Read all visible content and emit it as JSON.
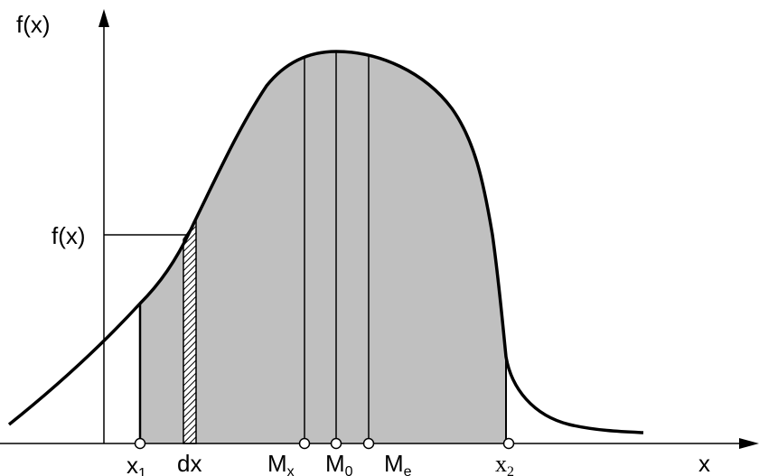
{
  "diagram": {
    "y_axis_label": "f(x)",
    "x_axis_label": "x",
    "fx_marker_label": "f(x)",
    "points": [
      {
        "base": "x",
        "sub": "1"
      },
      {
        "base": "dx",
        "sub": ""
      },
      {
        "base": "M",
        "sub": "x"
      },
      {
        "base": "M",
        "sub": "0"
      },
      {
        "base": "M",
        "sub": "e"
      },
      {
        "base": "x",
        "sub": "2"
      }
    ]
  },
  "colors": {
    "fill": "#c0c0c0",
    "stroke": "#000000",
    "background": "#ffffff"
  }
}
